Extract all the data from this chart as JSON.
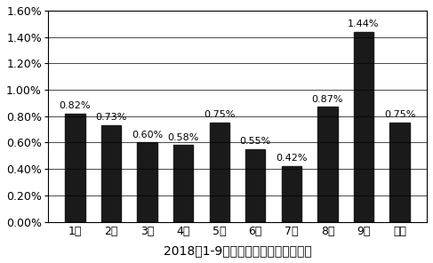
{
  "categories": [
    "\u00011月",
    "\u00012月",
    "\u00013月",
    "\u00014月",
    "\u00015月",
    "\u00016月",
    "\u00017月",
    "\u00018月",
    "\u00019月",
    "平均"
  ],
  "cat_display": [
    "1月",
    "2月",
    "3月",
    "4月",
    "5月",
    "6月",
    "7月",
    "8月",
    "9月",
    "平均"
  ],
  "values": [
    0.0082,
    0.0073,
    0.006,
    0.0058,
    0.0075,
    0.0055,
    0.0042,
    0.0087,
    0.0144,
    0.0075
  ],
  "labels": [
    "0.82%",
    "0.73%",
    "0.60%",
    "0.58%",
    "0.75%",
    "0.55%",
    "0.42%",
    "0.87%",
    "1.44%",
    "0.75%"
  ],
  "bar_color": "#1a1a1a",
  "xlabel": "2018年1-9月份未改进前渗碳体隔离率",
  "ylim": [
    0,
    0.016
  ],
  "yticks": [
    0.0,
    0.002,
    0.004,
    0.006,
    0.008,
    0.01,
    0.012,
    0.014,
    0.016
  ],
  "ytick_labels": [
    "0.00%",
    "0.20%",
    "0.40%",
    "0.60%",
    "0.80%",
    "1.00%",
    "1.20%",
    "1.40%",
    "1.60%"
  ],
  "background_color": "#ffffff",
  "label_fontsize": 8.0,
  "xlabel_fontsize": 10,
  "tick_fontsize": 9,
  "bar_width": 0.55
}
